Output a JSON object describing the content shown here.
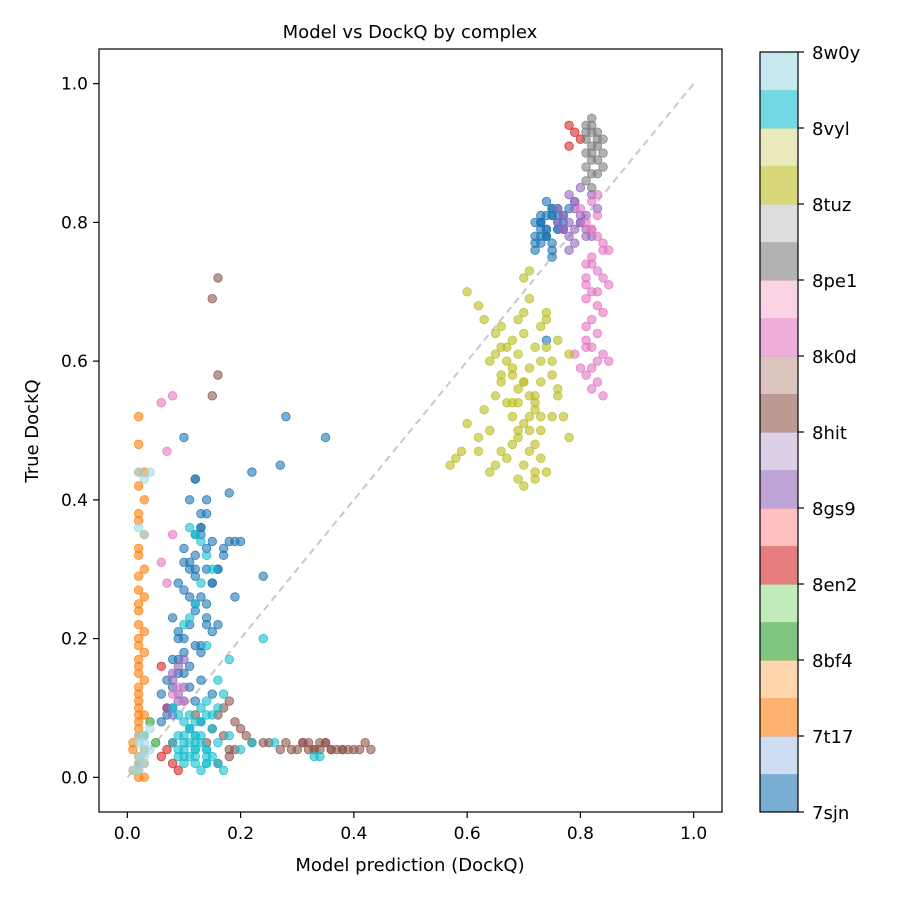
{
  "chart_data": {
    "type": "scatter",
    "title": "Model vs DockQ by complex",
    "xlabel": "Model prediction (DockQ)",
    "ylabel": "True DockQ",
    "xlim": [
      -0.05,
      1.05
    ],
    "ylim": [
      -0.05,
      1.05
    ],
    "x_ticks": [
      "0.0",
      "0.2",
      "0.4",
      "0.6",
      "0.8",
      "1.0"
    ],
    "y_ticks": [
      "0.0",
      "0.2",
      "0.4",
      "0.6",
      "0.8",
      "1.0"
    ],
    "grid": false,
    "reference_line": {
      "style": "dashed",
      "color": "#bbbbbb",
      "from": [
        0,
        0
      ],
      "to": [
        1,
        1
      ]
    },
    "colorbar": {
      "colormap": "tab20",
      "labels": [
        "7sjn",
        "7t17",
        "8bf4",
        "8en2",
        "8gs9",
        "8hit",
        "8k0d",
        "8pe1",
        "8tuz",
        "8vyl",
        "8w0y"
      ],
      "colors": [
        "#1f77b4",
        "#aec7e8",
        "#ff7f0e",
        "#ffbb78",
        "#2ca02c",
        "#98df8a",
        "#d62728",
        "#ff9896",
        "#9467bd",
        "#c5b0d5",
        "#8c564b",
        "#c49c94",
        "#e377c2",
        "#f7b6d2",
        "#7f7f7f",
        "#c7c7c7",
        "#bcbd22",
        "#dbdb8d",
        "#17becf",
        "#9edae5"
      ]
    },
    "series": [
      {
        "name": "7sjn",
        "color": "#1f77b4",
        "x": [
          0.72,
          0.74,
          0.73,
          0.76,
          0.74,
          0.75,
          0.73,
          0.72,
          0.76,
          0.75,
          0.74,
          0.73,
          0.77,
          0.78,
          0.75,
          0.76,
          0.74,
          0.73,
          0.72,
          0.74,
          0.75,
          0.73,
          0.77,
          0.74,
          0.72,
          0.76,
          0.75,
          0.74,
          0.73,
          0.75,
          0.77,
          0.73,
          0.74,
          0.76,
          0.75,
          0.09,
          0.11,
          0.1,
          0.12,
          0.13,
          0.14,
          0.12,
          0.11,
          0.1,
          0.15,
          0.13,
          0.12,
          0.14,
          0.16,
          0.18,
          0.17,
          0.15,
          0.13,
          0.14,
          0.12,
          0.11,
          0.1,
          0.09,
          0.08,
          0.12,
          0.13,
          0.14,
          0.15,
          0.16,
          0.17,
          0.11,
          0.12,
          0.13,
          0.18,
          0.19,
          0.22,
          0.2,
          0.24,
          0.28,
          0.19,
          0.27,
          0.35,
          0.1,
          0.12,
          0.14,
          0.11,
          0.13,
          0.15,
          0.09,
          0.1,
          0.11,
          0.12,
          0.08,
          0.07,
          0.06,
          0.07,
          0.08,
          0.09,
          0.1,
          0.06,
          0.07,
          0.13,
          0.14,
          0.12,
          0.15,
          0.16,
          0.11,
          0.1,
          0.09,
          0.08,
          0.13,
          0.14,
          0.12,
          0.1
        ],
        "y": [
          0.8,
          0.79,
          0.81,
          0.82,
          0.78,
          0.77,
          0.8,
          0.76,
          0.79,
          0.81,
          0.83,
          0.78,
          0.8,
          0.82,
          0.75,
          0.79,
          0.81,
          0.8,
          0.77,
          0.78,
          0.82,
          0.79,
          0.81,
          0.63,
          0.78,
          0.8,
          0.81,
          0.79,
          0.77,
          0.76,
          0.79,
          0.8,
          0.78,
          0.81,
          0.82,
          0.28,
          0.3,
          0.33,
          0.35,
          0.38,
          0.4,
          0.29,
          0.31,
          0.27,
          0.34,
          0.36,
          0.32,
          0.3,
          0.3,
          0.34,
          0.33,
          0.28,
          0.26,
          0.25,
          0.24,
          0.22,
          0.2,
          0.21,
          0.23,
          0.19,
          0.18,
          0.22,
          0.28,
          0.3,
          0.32,
          0.4,
          0.43,
          0.36,
          0.41,
          0.34,
          0.44,
          0.34,
          0.29,
          0.52,
          0.26,
          0.45,
          0.49,
          0.49,
          0.43,
          0.38,
          0.16,
          0.14,
          0.12,
          0.17,
          0.15,
          0.13,
          0.11,
          0.1,
          0.09,
          0.12,
          0.14,
          0.13,
          0.15,
          0.11,
          0.08,
          0.1,
          0.19,
          0.23,
          0.25,
          0.21,
          0.22,
          0.26,
          0.18,
          0.2,
          0.17,
          0.35,
          0.33,
          0.3,
          0.31
        ]
      },
      {
        "name": "7t17",
        "color": "#ff7f0e",
        "x": [
          0.02,
          0.02,
          0.03,
          0.02,
          0.02,
          0.03,
          0.02,
          0.02,
          0.03,
          0.02,
          0.02,
          0.03,
          0.02,
          0.02,
          0.03,
          0.02,
          0.02,
          0.02,
          0.03,
          0.02,
          0.02,
          0.03,
          0.02,
          0.02,
          0.02,
          0.03,
          0.02,
          0.02,
          0.02,
          0.03,
          0.02,
          0.02,
          0.02,
          0.01,
          0.01,
          0.02,
          0.02,
          0.01,
          0.02,
          0.03,
          0.02,
          0.02,
          0.03,
          0.02,
          0.02,
          0.02,
          0.03
        ],
        "y": [
          0.52,
          0.48,
          0.44,
          0.44,
          0.42,
          0.4,
          0.38,
          0.37,
          0.35,
          0.33,
          0.32,
          0.3,
          0.29,
          0.27,
          0.26,
          0.25,
          0.24,
          0.22,
          0.21,
          0.2,
          0.19,
          0.18,
          0.17,
          0.16,
          0.15,
          0.14,
          0.13,
          0.12,
          0.1,
          0.09,
          0.08,
          0.07,
          0.06,
          0.05,
          0.04,
          0.03,
          0.02,
          0.01,
          0.0,
          0.0,
          0.01,
          0.02,
          0.04,
          0.06,
          0.09,
          0.11,
          0.02
        ]
      },
      {
        "name": "8bf4",
        "color": "#2ca02c",
        "x": [
          0.04,
          0.03,
          0.05
        ],
        "y": [
          0.08,
          0.06,
          0.05
        ]
      },
      {
        "name": "8en2",
        "color": "#d62728",
        "x": [
          0.78,
          0.79,
          0.8,
          0.78,
          0.06,
          0.07,
          0.08,
          0.07,
          0.09,
          0.06,
          0.08
        ],
        "y": [
          0.94,
          0.93,
          0.92,
          0.91,
          0.16,
          0.04,
          0.02,
          0.1,
          0.01,
          0.03,
          0.05
        ]
      },
      {
        "name": "8gs9",
        "color": "#9467bd",
        "x": [
          0.78,
          0.79,
          0.8,
          0.81,
          0.77,
          0.76,
          0.79,
          0.8,
          0.82,
          0.78,
          0.77,
          0.81,
          0.8,
          0.79,
          0.78,
          0.76,
          0.79,
          0.81,
          0.83,
          0.8,
          0.79,
          0.78,
          0.77,
          0.82,
          0.09,
          0.1,
          0.08,
          0.09,
          0.07,
          0.08,
          0.09,
          0.1,
          0.08
        ],
        "y": [
          0.84,
          0.82,
          0.8,
          0.79,
          0.81,
          0.82,
          0.83,
          0.85,
          0.84,
          0.78,
          0.79,
          0.81,
          0.8,
          0.77,
          0.76,
          0.8,
          0.79,
          0.78,
          0.82,
          0.81,
          0.83,
          0.8,
          0.79,
          0.78,
          0.16,
          0.17,
          0.14,
          0.12,
          0.1,
          0.09,
          0.11,
          0.13,
          0.15
        ]
      },
      {
        "name": "8hit",
        "color": "#8c564b",
        "x": [
          0.16,
          0.15,
          0.16,
          0.15,
          0.18,
          0.17,
          0.16,
          0.19,
          0.2,
          0.21,
          0.22,
          0.18,
          0.17,
          0.15,
          0.14,
          0.19,
          0.18,
          0.16,
          0.13,
          0.12,
          0.24,
          0.25,
          0.28,
          0.3,
          0.31,
          0.32,
          0.33,
          0.34,
          0.35,
          0.36,
          0.37,
          0.38,
          0.39,
          0.4,
          0.41,
          0.42,
          0.43,
          0.33,
          0.34,
          0.35,
          0.31,
          0.29,
          0.36,
          0.32,
          0.38,
          0.27
        ],
        "y": [
          0.72,
          0.69,
          0.58,
          0.55,
          0.11,
          0.1,
          0.09,
          0.08,
          0.07,
          0.06,
          0.05,
          0.04,
          0.06,
          0.07,
          0.05,
          0.04,
          0.03,
          0.02,
          0.08,
          0.09,
          0.05,
          0.05,
          0.05,
          0.04,
          0.05,
          0.05,
          0.04,
          0.05,
          0.05,
          0.04,
          0.04,
          0.04,
          0.04,
          0.04,
          0.04,
          0.05,
          0.04,
          0.04,
          0.04,
          0.05,
          0.05,
          0.04,
          0.04,
          0.04,
          0.04,
          0.04
        ]
      },
      {
        "name": "8k0d",
        "color": "#e377c2",
        "x": [
          0.8,
          0.81,
          0.82,
          0.83,
          0.84,
          0.85,
          0.82,
          0.81,
          0.83,
          0.84,
          0.85,
          0.82,
          0.81,
          0.83,
          0.84,
          0.82,
          0.83,
          0.81,
          0.84,
          0.85,
          0.82,
          0.81,
          0.83,
          0.82,
          0.84,
          0.81,
          0.82,
          0.83,
          0.8,
          0.79,
          0.81,
          0.82,
          0.83,
          0.81,
          0.82,
          0.84,
          0.82,
          0.83,
          0.81,
          0.83,
          0.06,
          0.08,
          0.07,
          0.08,
          0.06,
          0.07,
          0.09,
          0.08,
          0.1
        ],
        "y": [
          0.82,
          0.8,
          0.79,
          0.78,
          0.77,
          0.76,
          0.75,
          0.74,
          0.73,
          0.72,
          0.71,
          0.7,
          0.69,
          0.68,
          0.67,
          0.66,
          0.64,
          0.62,
          0.61,
          0.6,
          0.59,
          0.58,
          0.57,
          0.56,
          0.55,
          0.63,
          0.62,
          0.6,
          0.59,
          0.61,
          0.71,
          0.83,
          0.84,
          0.72,
          0.74,
          0.76,
          0.79,
          0.81,
          0.65,
          0.7,
          0.54,
          0.55,
          0.47,
          0.35,
          0.31,
          0.28,
          0.13,
          0.12,
          0.11
        ]
      },
      {
        "name": "8pe1",
        "color": "#7f7f7f",
        "x": [
          0.82,
          0.81,
          0.83,
          0.82,
          0.84,
          0.81,
          0.82,
          0.83,
          0.82,
          0.81,
          0.83,
          0.82,
          0.84,
          0.81,
          0.82,
          0.83,
          0.81,
          0.82,
          0.83,
          0.84,
          0.82,
          0.81
        ],
        "y": [
          0.95,
          0.94,
          0.93,
          0.93,
          0.92,
          0.92,
          0.91,
          0.91,
          0.9,
          0.9,
          0.89,
          0.89,
          0.88,
          0.88,
          0.87,
          0.87,
          0.86,
          0.94,
          0.92,
          0.9,
          0.85,
          0.93
        ]
      },
      {
        "name": "8tuz",
        "color": "#bcbd22",
        "x": [
          0.6,
          0.62,
          0.63,
          0.65,
          0.66,
          0.67,
          0.68,
          0.69,
          0.7,
          0.71,
          0.72,
          0.73,
          0.74,
          0.75,
          0.76,
          0.7,
          0.71,
          0.69,
          0.72,
          0.73,
          0.68,
          0.67,
          0.66,
          0.65,
          0.64,
          0.7,
          0.72,
          0.74,
          0.73,
          0.71,
          0.69,
          0.68,
          0.66,
          0.65,
          0.63,
          0.62,
          0.6,
          0.59,
          0.57,
          0.58,
          0.69,
          0.71,
          0.73,
          0.75,
          0.72,
          0.7,
          0.68,
          0.67,
          0.66,
          0.64,
          0.7,
          0.71,
          0.74,
          0.76,
          0.78,
          0.73,
          0.72,
          0.71,
          0.69,
          0.68,
          0.7,
          0.72,
          0.73,
          0.74,
          0.75,
          0.76,
          0.77,
          0.78,
          0.71,
          0.7,
          0.69,
          0.67,
          0.66,
          0.65,
          0.68,
          0.64,
          0.62,
          0.7,
          0.72,
          0.69
        ],
        "y": [
          0.7,
          0.68,
          0.66,
          0.64,
          0.62,
          0.6,
          0.58,
          0.56,
          0.57,
          0.55,
          0.53,
          0.6,
          0.62,
          0.58,
          0.56,
          0.51,
          0.5,
          0.49,
          0.48,
          0.52,
          0.54,
          0.46,
          0.47,
          0.45,
          0.44,
          0.42,
          0.43,
          0.44,
          0.46,
          0.59,
          0.61,
          0.63,
          0.57,
          0.55,
          0.53,
          0.49,
          0.51,
          0.47,
          0.45,
          0.46,
          0.43,
          0.47,
          0.5,
          0.52,
          0.55,
          0.57,
          0.59,
          0.62,
          0.65,
          0.6,
          0.64,
          0.69,
          0.66,
          0.63,
          0.61,
          0.57,
          0.54,
          0.52,
          0.5,
          0.48,
          0.45,
          0.44,
          0.65,
          0.67,
          0.6,
          0.55,
          0.52,
          0.49,
          0.73,
          0.72,
          0.66,
          0.54,
          0.58,
          0.61,
          0.52,
          0.5,
          0.47,
          0.67,
          0.62,
          0.54
        ]
      },
      {
        "name": "8vyl",
        "color": "#17becf",
        "x": [
          0.08,
          0.09,
          0.1,
          0.11,
          0.12,
          0.13,
          0.14,
          0.15,
          0.16,
          0.17,
          0.1,
          0.11,
          0.12,
          0.13,
          0.14,
          0.09,
          0.1,
          0.12,
          0.11,
          0.13,
          0.15,
          0.16,
          0.14,
          0.12,
          0.1,
          0.09,
          0.11,
          0.13,
          0.14,
          0.12,
          0.16,
          0.18,
          0.15,
          0.13,
          0.11,
          0.09,
          0.08,
          0.1,
          0.12,
          0.14,
          0.24,
          0.22,
          0.26,
          0.2,
          0.18,
          0.17,
          0.16,
          0.14,
          0.13,
          0.12,
          0.11,
          0.1,
          0.12,
          0.14,
          0.33,
          0.34,
          0.11,
          0.12,
          0.13,
          0.14,
          0.15,
          0.13,
          0.12,
          0.11,
          0.1,
          0.14
        ],
        "y": [
          0.1,
          0.09,
          0.08,
          0.07,
          0.06,
          0.05,
          0.04,
          0.03,
          0.02,
          0.01,
          0.02,
          0.03,
          0.04,
          0.01,
          0.02,
          0.03,
          0.05,
          0.06,
          0.07,
          0.08,
          0.09,
          0.1,
          0.11,
          0.02,
          0.03,
          0.04,
          0.05,
          0.06,
          0.03,
          0.04,
          0.05,
          0.06,
          0.07,
          0.08,
          0.09,
          0.06,
          0.05,
          0.04,
          0.03,
          0.02,
          0.2,
          0.05,
          0.05,
          0.04,
          0.17,
          0.12,
          0.14,
          0.09,
          0.1,
          0.08,
          0.07,
          0.06,
          0.05,
          0.04,
          0.03,
          0.03,
          0.36,
          0.35,
          0.34,
          0.32,
          0.3,
          0.28,
          0.25,
          0.23,
          0.22,
          0.19
        ]
      },
      {
        "name": "8w0y",
        "color": "#9edae5",
        "x": [
          0.02,
          0.03,
          0.04,
          0.02,
          0.03,
          0.02,
          0.03,
          0.04,
          0.02,
          0.03,
          0.02,
          0.01,
          0.02,
          0.03,
          0.03,
          0.02,
          0.03,
          0.04
        ],
        "y": [
          0.44,
          0.43,
          0.44,
          0.36,
          0.35,
          0.06,
          0.05,
          0.04,
          0.03,
          0.02,
          0.01,
          0.01,
          0.02,
          0.03,
          0.04,
          0.05,
          0.06,
          0.07
        ]
      }
    ]
  }
}
